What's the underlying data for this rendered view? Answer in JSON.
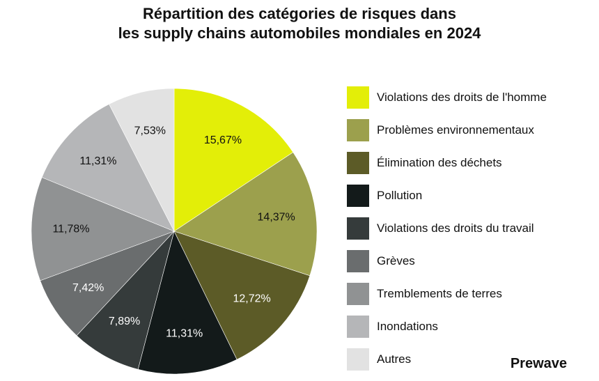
{
  "chart_data": {
    "type": "pie",
    "title_lines": [
      "Répartition des catégories de risques dans",
      "les supply chains automobiles mondiales en 2024"
    ],
    "categories": [
      "Violations des droits de l'homme",
      "Problèmes environnementaux",
      "Élimination des déchets",
      "Pollution",
      "Violations des droits du travail",
      "Grèves",
      "Tremblements de terres",
      "Inondations",
      "Autres"
    ],
    "values": [
      15.67,
      14.37,
      12.72,
      11.31,
      7.89,
      7.42,
      11.78,
      11.31,
      7.53
    ],
    "value_labels": [
      "15,67%",
      "14,37%",
      "12,72%",
      "11,31%",
      "7,89%",
      "7,42%",
      "11,78%",
      "11,31%",
      "7,53%"
    ],
    "colors": [
      "#e3ee08",
      "#9ca04d",
      "#5c5b27",
      "#131a1a",
      "#353b3b",
      "#6a6d6e",
      "#909293",
      "#b5b6b8",
      "#e2e2e2"
    ],
    "label_colors": [
      "#111111",
      "#111111",
      "#ffffff",
      "#ffffff",
      "#ffffff",
      "#ffffff",
      "#111111",
      "#111111",
      "#111111"
    ],
    "legend_position": "right",
    "start_angle": "top (12 o'clock), clockwise"
  },
  "brand": {
    "name": "Prewave"
  }
}
